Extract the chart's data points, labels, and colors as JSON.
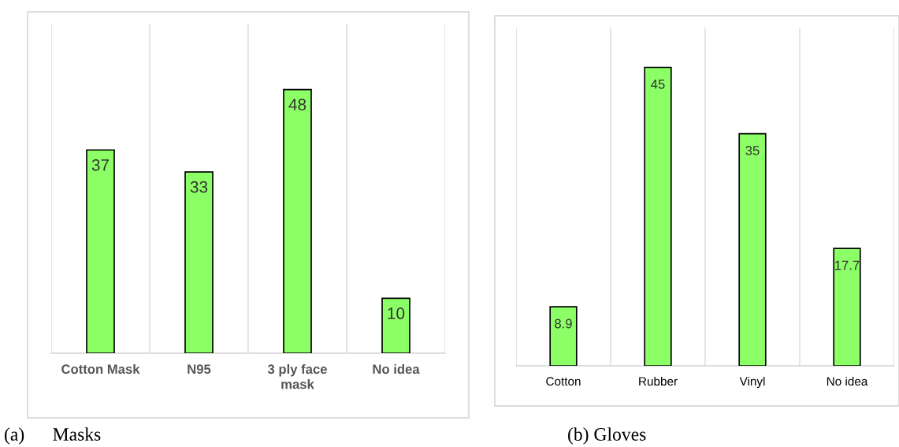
{
  "chart_data": [
    {
      "type": "bar",
      "title": "(a)      Masks",
      "categories": [
        "Cotton Mask",
        "N95",
        "3 ply face mask",
        "No idea"
      ],
      "values": [
        37,
        33,
        48,
        10
      ],
      "color": "#8cff66",
      "ylim": [
        0,
        60
      ],
      "data_labels": true,
      "grid": "x",
      "tick_labels": "x"
    },
    {
      "type": "bar",
      "title": "(b) Gloves",
      "categories": [
        "Cotton",
        "Rubber",
        "Vinyl",
        "No idea"
      ],
      "values": [
        8.9,
        45,
        35,
        17.7
      ],
      "color": "#8cff66",
      "ylim": [
        0,
        51
      ],
      "data_labels": true,
      "grid": "x",
      "tick_labels": "x"
    }
  ]
}
